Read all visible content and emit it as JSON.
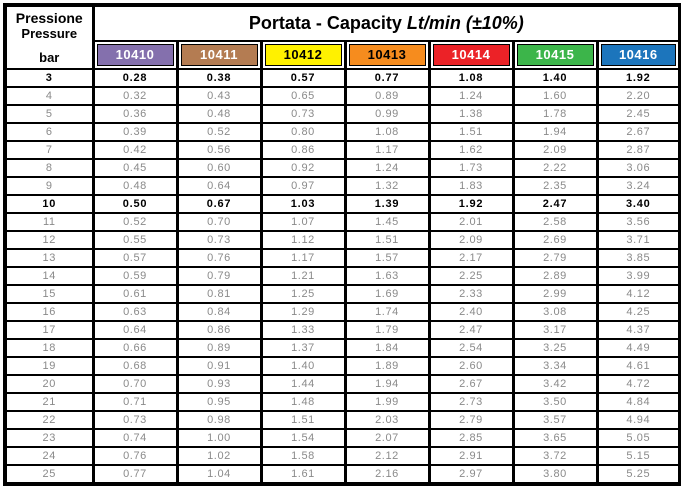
{
  "header": {
    "left": {
      "line1": "Pressione",
      "line2": "Pressure",
      "unit": "bar"
    },
    "title": {
      "bold": "Portata",
      "separator": " - Capacity ",
      "italic": "Lt/min (±10%)"
    }
  },
  "columns": [
    {
      "id": "10410",
      "color": "#8470AD",
      "text_color": "#ffffff"
    },
    {
      "id": "10411",
      "color": "#B47C52",
      "text_color": "#ffffff"
    },
    {
      "id": "10412",
      "color": "#FFF100",
      "text_color": "#000000"
    },
    {
      "id": "10413",
      "color": "#F68C1E",
      "text_color": "#000000"
    },
    {
      "id": "10414",
      "color": "#EC2227",
      "text_color": "#ffffff"
    },
    {
      "id": "10415",
      "color": "#3CB54A",
      "text_color": "#ffffff"
    },
    {
      "id": "10416",
      "color": "#1C75BC",
      "text_color": "#ffffff"
    }
  ],
  "rows": [
    {
      "pressure": "3",
      "bold": true,
      "values": [
        "0.28",
        "0.38",
        "0.57",
        "0.77",
        "1.08",
        "1.40",
        "1.92"
      ]
    },
    {
      "pressure": "4",
      "bold": false,
      "values": [
        "0.32",
        "0.43",
        "0.65",
        "0.89",
        "1.24",
        "1.60",
        "2.20"
      ]
    },
    {
      "pressure": "5",
      "bold": false,
      "values": [
        "0.36",
        "0.48",
        "0.73",
        "0.99",
        "1.38",
        "1.78",
        "2.45"
      ]
    },
    {
      "pressure": "6",
      "bold": false,
      "values": [
        "0.39",
        "0.52",
        "0.80",
        "1.08",
        "1.51",
        "1.94",
        "2.67"
      ]
    },
    {
      "pressure": "7",
      "bold": false,
      "values": [
        "0.42",
        "0.56",
        "0.86",
        "1.17",
        "1.62",
        "2.09",
        "2.87"
      ]
    },
    {
      "pressure": "8",
      "bold": false,
      "values": [
        "0.45",
        "0.60",
        "0.92",
        "1.24",
        "1.73",
        "2.22",
        "3.06"
      ]
    },
    {
      "pressure": "9",
      "bold": false,
      "values": [
        "0.48",
        "0.64",
        "0.97",
        "1.32",
        "1.83",
        "2.35",
        "3.24"
      ]
    },
    {
      "pressure": "10",
      "bold": true,
      "values": [
        "0.50",
        "0.67",
        "1.03",
        "1.39",
        "1.92",
        "2.47",
        "3.40"
      ]
    },
    {
      "pressure": "11",
      "bold": false,
      "values": [
        "0.52",
        "0.70",
        "1.07",
        "1.45",
        "2.01",
        "2.58",
        "3.56"
      ]
    },
    {
      "pressure": "12",
      "bold": false,
      "values": [
        "0.55",
        "0.73",
        "1.12",
        "1.51",
        "2.09",
        "2.69",
        "3.71"
      ]
    },
    {
      "pressure": "13",
      "bold": false,
      "values": [
        "0.57",
        "0.76",
        "1.17",
        "1.57",
        "2.17",
        "2.79",
        "3.85"
      ]
    },
    {
      "pressure": "14",
      "bold": false,
      "values": [
        "0.59",
        "0.79",
        "1.21",
        "1.63",
        "2.25",
        "2.89",
        "3.99"
      ]
    },
    {
      "pressure": "15",
      "bold": false,
      "values": [
        "0.61",
        "0.81",
        "1.25",
        "1.69",
        "2.33",
        "2.99",
        "4.12"
      ]
    },
    {
      "pressure": "16",
      "bold": false,
      "values": [
        "0.63",
        "0.84",
        "1.29",
        "1.74",
        "2.40",
        "3.08",
        "4.25"
      ]
    },
    {
      "pressure": "17",
      "bold": false,
      "values": [
        "0.64",
        "0.86",
        "1.33",
        "1.79",
        "2.47",
        "3.17",
        "4.37"
      ]
    },
    {
      "pressure": "18",
      "bold": false,
      "values": [
        "0.66",
        "0.89",
        "1.37",
        "1.84",
        "2.54",
        "3.25",
        "4.49"
      ]
    },
    {
      "pressure": "19",
      "bold": false,
      "values": [
        "0.68",
        "0.91",
        "1.40",
        "1.89",
        "2.60",
        "3.34",
        "4.61"
      ]
    },
    {
      "pressure": "20",
      "bold": false,
      "values": [
        "0.70",
        "0.93",
        "1.44",
        "1.94",
        "2.67",
        "3.42",
        "4.72"
      ]
    },
    {
      "pressure": "21",
      "bold": false,
      "values": [
        "0.71",
        "0.95",
        "1.48",
        "1.99",
        "2.73",
        "3.50",
        "4.84"
      ]
    },
    {
      "pressure": "22",
      "bold": false,
      "values": [
        "0.73",
        "0.98",
        "1.51",
        "2.03",
        "2.79",
        "3.57",
        "4.94"
      ]
    },
    {
      "pressure": "23",
      "bold": false,
      "values": [
        "0.74",
        "1.00",
        "1.54",
        "2.07",
        "2.85",
        "3.65",
        "5.05"
      ]
    },
    {
      "pressure": "24",
      "bold": false,
      "values": [
        "0.76",
        "1.02",
        "1.58",
        "2.12",
        "2.91",
        "3.72",
        "5.15"
      ]
    },
    {
      "pressure": "25",
      "bold": false,
      "values": [
        "0.77",
        "1.04",
        "1.61",
        "2.16",
        "2.97",
        "3.80",
        "5.25"
      ]
    }
  ]
}
